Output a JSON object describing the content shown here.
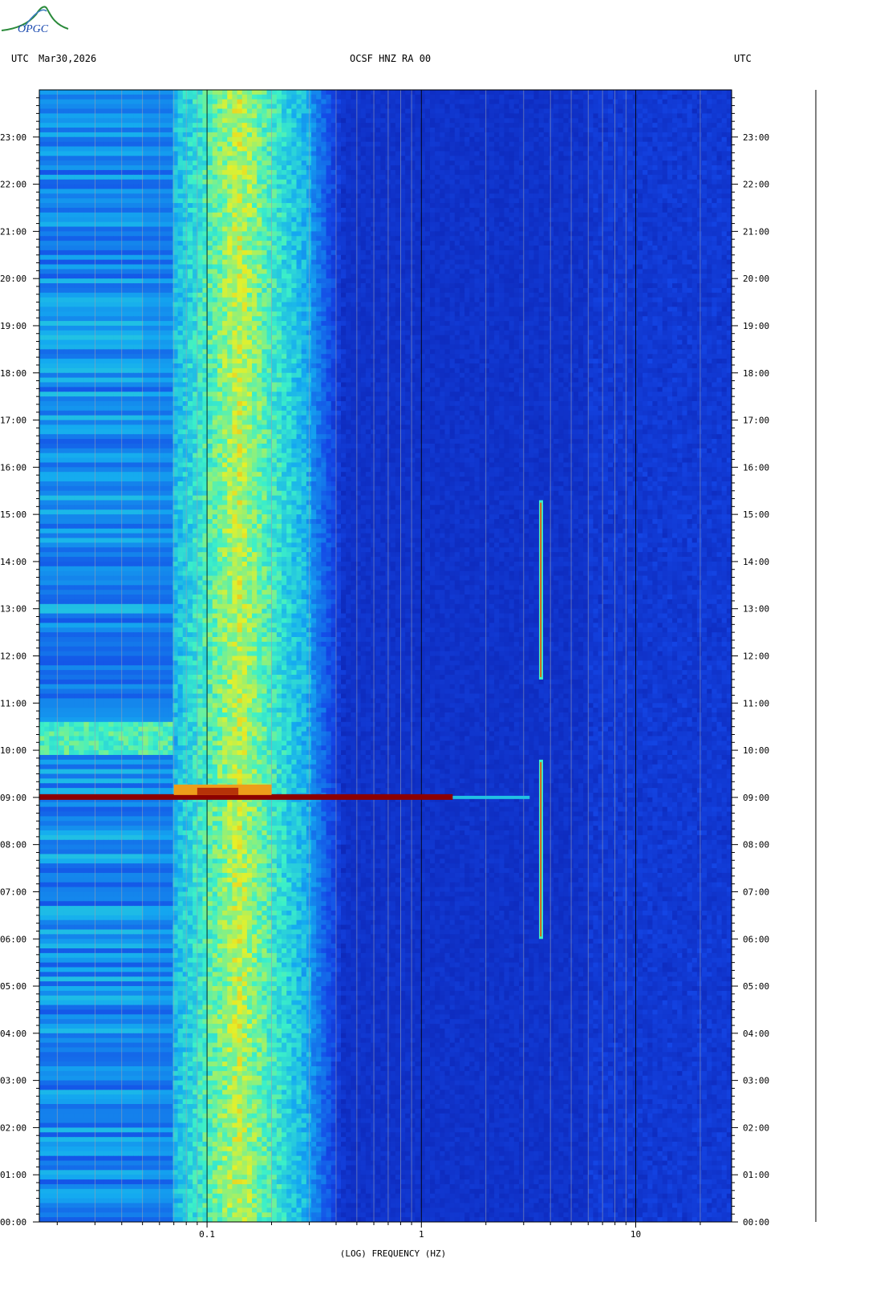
{
  "header": {
    "left_timezone": "UTC",
    "date": "Mar30,2026",
    "station": "OCSF HNZ RA 00",
    "right_timezone": "UTC"
  },
  "logo": {
    "text": "OPGC"
  },
  "colors": {
    "background_low": "#0a1ea0",
    "mid": "#1aa0e8",
    "high": "#e8f020",
    "max": "#8b0000",
    "grid": "#9aa0b0"
  },
  "chart_data": {
    "type": "heatmap",
    "title": "OCSF HNZ RA 00",
    "xlabel": "(LOG) FREQUENCY (HZ)",
    "xscale": "log",
    "xlim": [
      0.0165,
      28
    ],
    "x_ticks": [
      {
        "value": 0.1,
        "label": "0.1"
      },
      {
        "value": 1,
        "label": "1"
      },
      {
        "value": 10,
        "label": "10"
      }
    ],
    "ylabel": "UTC",
    "ylim_hours": [
      0,
      24
    ],
    "y_ticks": [
      "00:00",
      "01:00",
      "02:00",
      "03:00",
      "04:00",
      "05:00",
      "06:00",
      "07:00",
      "08:00",
      "09:00",
      "10:00",
      "11:00",
      "12:00",
      "13:00",
      "14:00",
      "15:00",
      "16:00",
      "17:00",
      "18:00",
      "19:00",
      "20:00",
      "21:00",
      "22:00",
      "23:00"
    ],
    "features": [
      {
        "name": "microseism band",
        "freq_range_hz": [
          0.07,
          0.3
        ],
        "hours": [
          0,
          24
        ],
        "level": "high"
      },
      {
        "name": "event",
        "time": "09:00",
        "freq_range_hz": [
          0.0165,
          1.4
        ],
        "level": "max"
      },
      {
        "name": "tonal line",
        "freq_hz": 3.6,
        "hours": [
          [
            6.0,
            9.8
          ],
          [
            11.5,
            15.3
          ]
        ],
        "level": "max"
      }
    ]
  }
}
